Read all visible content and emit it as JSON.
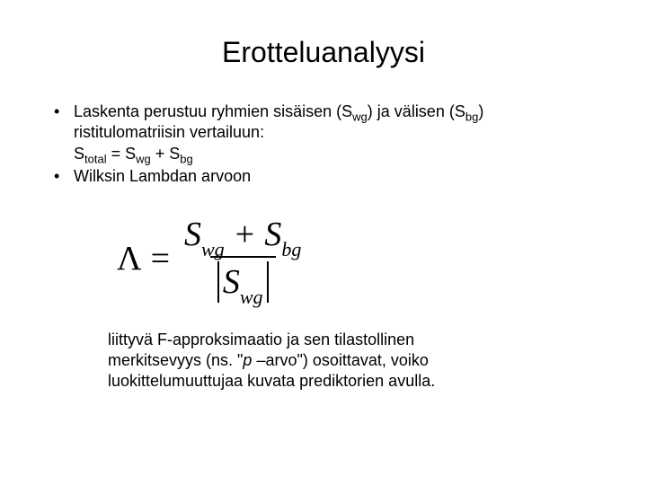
{
  "title": "Erotteluanalyysi",
  "bullet1": {
    "part1": "Laskenta perustuu ryhmien sisäisen (S",
    "sub1": "wg",
    "part2": ") ja välisen (S",
    "sub2": "bg",
    "part3": ")",
    "line2": "ristitulomatriisin vertailuun:",
    "eq_a": "S",
    "eq_a_sub": "total",
    "eq_mid": " = S",
    "eq_b_sub": "wg",
    "eq_mid2": " + S",
    "eq_c_sub": "bg"
  },
  "bullet2": "Wilksin Lambdan arvoon",
  "formula": {
    "lambda": "Λ",
    "equals": "=",
    "num_a": "S",
    "num_a_sub": "wg",
    "plus": " + ",
    "num_b": "S",
    "num_b_sub": "bg",
    "den": "S",
    "den_sub": "wg"
  },
  "closing": {
    "l1": "liittyvä F-approksimaatio ja sen tilastollinen",
    "l2a": "merkitsevyys (ns. \"",
    "l2_ital": "p",
    "l2b": " –arvo\") osoittavat, voiko",
    "l3": "luokittelumuuttujaa kuvata prediktorien avulla."
  }
}
